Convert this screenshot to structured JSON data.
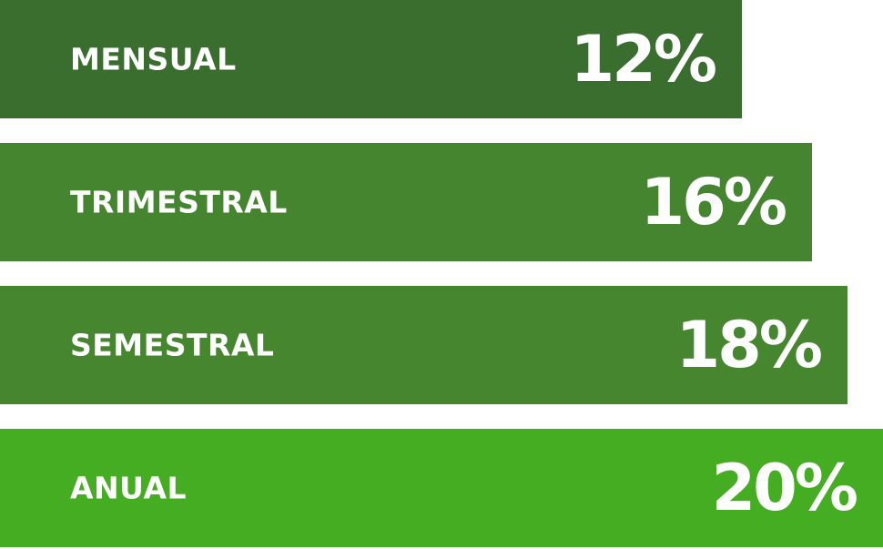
{
  "chart_data": {
    "type": "bar",
    "orientation": "horizontal",
    "categories": [
      "MENSUAL",
      "TRIMESTRAL",
      "SEMESTRAL",
      "ANUAL"
    ],
    "values": [
      12,
      16,
      18,
      20
    ],
    "value_labels": [
      "12%",
      "16%",
      "18%",
      "20%"
    ],
    "colors": [
      "#3a6e2e",
      "#45852f",
      "#45862f",
      "#45ad22"
    ],
    "title": "",
    "xlabel": "",
    "ylabel": "",
    "grid": false,
    "legend": "none"
  }
}
